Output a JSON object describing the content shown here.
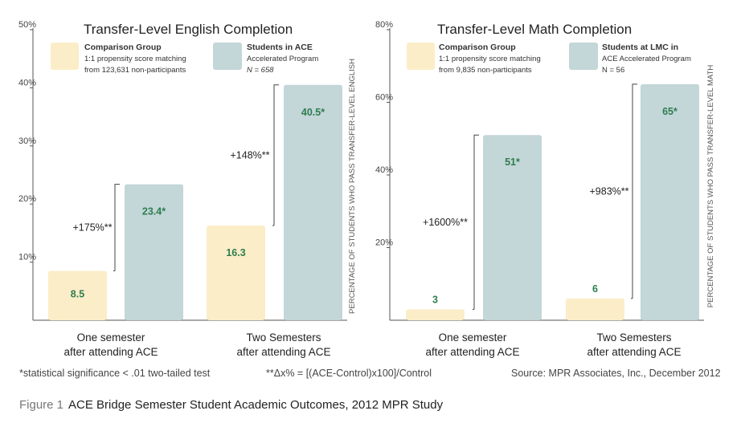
{
  "chart_data": [
    {
      "type": "bar",
      "title": "Transfer-Level English Completion",
      "ylabel": "PERCENTAGE OF STUDENTS WHO PASS TRANSFER-LEVEL ENGLISH",
      "ylim": [
        0,
        50
      ],
      "yticks": [
        "10%",
        "20%",
        "30%",
        "40%",
        "50%"
      ],
      "categories": [
        [
          "One semester",
          "after attending ACE"
        ],
        [
          "Two Semesters",
          "after attending ACE"
        ]
      ],
      "series": [
        {
          "name": "Comparison Group",
          "values": [
            8.5,
            16.3
          ],
          "labels": [
            "8.5",
            "16.3"
          ],
          "color": "#fbedc8"
        },
        {
          "name": "Students in ACE",
          "values": [
            23.4,
            40.5
          ],
          "labels": [
            "23.4*",
            "40.5*"
          ],
          "color": "#c3d6d8"
        }
      ],
      "legend": [
        {
          "title": "Comparison Group",
          "lines": [
            "1:1 propensity score matching",
            "from 123,631 non-participants"
          ],
          "italic": false
        },
        {
          "title": "Students in ACE",
          "lines": [
            "Accelerated Program",
            "N = 658"
          ],
          "italic": true
        }
      ],
      "annotations": [
        "+175%**",
        "+148%**"
      ]
    },
    {
      "type": "bar",
      "title": "Transfer-Level Math Completion",
      "ylabel": "PERCENTAGE OF STUDENTS WHO PASS TRANSFER-LEVEL MATH",
      "ylim": [
        0,
        80
      ],
      "yticks": [
        "20%",
        "40%",
        "60%",
        "80%"
      ],
      "categories": [
        [
          "One semester",
          "after attending ACE"
        ],
        [
          "Two Semesters",
          "after attending ACE"
        ]
      ],
      "series": [
        {
          "name": "Comparison Group",
          "values": [
            3,
            6
          ],
          "labels": [
            "3",
            "6"
          ],
          "color": "#fbedc8"
        },
        {
          "name": "Students at LMC in",
          "values": [
            51,
            65
          ],
          "labels": [
            "51*",
            "65*"
          ],
          "color": "#c3d6d8"
        }
      ],
      "legend": [
        {
          "title": "Comparison Group",
          "lines": [
            "1:1 propensity score matching",
            "from 9,835 non-participants"
          ],
          "italic": false
        },
        {
          "title": "Students at LMC in",
          "lines": [
            "ACE Accelerated Program",
            "N = 56"
          ],
          "italic": false
        }
      ],
      "annotations": [
        "+1600%**",
        "+983%**"
      ]
    }
  ],
  "footer": {
    "significance": "*statistical significance < .01 two-tailed test",
    "formula": "**Δx% = [(ACE-Control)x100]/Control",
    "source": "Source: MPR Associates, Inc., December 2012"
  },
  "caption": {
    "label": "Figure 1",
    "text": "ACE Bridge Semester Student Academic Outcomes, 2012 MPR Study"
  },
  "colors": {
    "comparison": "#fbedc8",
    "ace": "#c3d6d8",
    "value_green": "#2e7d4f",
    "axis": "#555555"
  }
}
